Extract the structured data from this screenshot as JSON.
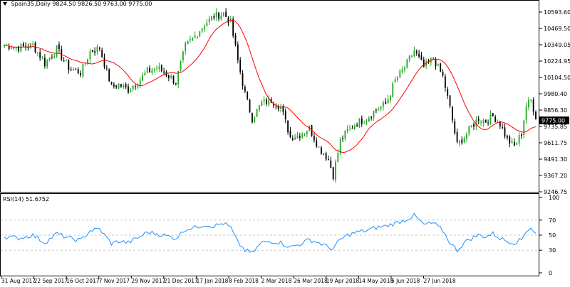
{
  "header": {
    "symbol": "Spain35,Daily",
    "ohlc": "9824.50 9826.50 9763.00 9775.00"
  },
  "rsi_header": {
    "label": "RSI(14)",
    "value": "51.6752"
  },
  "colors": {
    "bull": "#22aa22",
    "bear": "#000000",
    "ma": "#ff0000",
    "rsi": "#1e90ff",
    "grid": "#c8c8c8",
    "frame": "#000000"
  },
  "chart_data": [
    {
      "type": "candlestick",
      "title": "Spain35,Daily",
      "indicator": "Moving average",
      "y_ticks": [
        "10593.60",
        "10469.50",
        "10349.05",
        "10224.95",
        "10104.50",
        "9980.40",
        "9856.30",
        "9735.85",
        "9611.75",
        "9491.30",
        "9367.20",
        "9246.75"
      ],
      "last_price_label": "9775.00",
      "ylim": [
        9225,
        10620
      ],
      "x_ticks": [
        "31 Aug 2017",
        "22 Sep 2017",
        "16 Oct 2017",
        "7 Nov 2017",
        "29 Nov 2017",
        "21 Dec 2017",
        "17 Jan 2018",
        "8 Feb 2018",
        "2 Mar 2018",
        "26 Mar 2018",
        "19 Apr 2018",
        "14 May 2018",
        "5 Jun 2018",
        "27 Jun 2018"
      ],
      "anchor_closes": [
        [
          0,
          10320
        ],
        [
          6,
          10300
        ],
        [
          12,
          10320
        ],
        [
          17,
          10180
        ],
        [
          22,
          10290
        ],
        [
          27,
          10150
        ],
        [
          32,
          10110
        ],
        [
          36,
          10270
        ],
        [
          40,
          10300
        ],
        [
          45,
          10000
        ],
        [
          48,
          10020
        ],
        [
          52,
          9980
        ],
        [
          57,
          10060
        ],
        [
          60,
          10120
        ],
        [
          64,
          10150
        ],
        [
          68,
          10100
        ],
        [
          72,
          10040
        ],
        [
          76,
          10310
        ],
        [
          80,
          10390
        ],
        [
          84,
          10480
        ],
        [
          88,
          10540
        ],
        [
          92,
          10560
        ],
        [
          95,
          10490
        ],
        [
          98,
          10200
        ],
        [
          101,
          9950
        ],
        [
          104,
          9760
        ],
        [
          108,
          9880
        ],
        [
          112,
          9900
        ],
        [
          116,
          9850
        ],
        [
          120,
          9620
        ],
        [
          124,
          9640
        ],
        [
          128,
          9690
        ],
        [
          132,
          9540
        ],
        [
          136,
          9450
        ],
        [
          138,
          9330
        ],
        [
          141,
          9590
        ],
        [
          144,
          9670
        ],
        [
          148,
          9730
        ],
        [
          152,
          9760
        ],
        [
          156,
          9830
        ],
        [
          160,
          9870
        ],
        [
          164,
          10050
        ],
        [
          168,
          10150
        ],
        [
          172,
          10280
        ],
        [
          176,
          10150
        ],
        [
          180,
          10220
        ],
        [
          184,
          10080
        ],
        [
          187,
          9840
        ],
        [
          190,
          9560
        ],
        [
          193,
          9620
        ],
        [
          196,
          9700
        ],
        [
          199,
          9760
        ],
        [
          202,
          9740
        ],
        [
          205,
          9780
        ],
        [
          208,
          9720
        ],
        [
          211,
          9600
        ],
        [
          214,
          9550
        ],
        [
          217,
          9650
        ],
        [
          219,
          9860
        ],
        [
          221,
          9900
        ],
        [
          223,
          9775
        ]
      ]
    },
    {
      "type": "line",
      "title": "RSI(14)",
      "series": [
        {
          "name": "RSI(14)",
          "last_value": 51.6752
        }
      ],
      "y_ticks": [
        100,
        70,
        50,
        30,
        0
      ],
      "levels": [
        70,
        50,
        30
      ],
      "ylim": [
        0,
        100
      ],
      "anchor_values": [
        [
          0,
          48
        ],
        [
          6,
          46
        ],
        [
          12,
          50
        ],
        [
          17,
          40
        ],
        [
          22,
          52
        ],
        [
          27,
          46
        ],
        [
          32,
          43
        ],
        [
          36,
          56
        ],
        [
          40,
          58
        ],
        [
          45,
          39
        ],
        [
          48,
          42
        ],
        [
          52,
          40
        ],
        [
          57,
          48
        ],
        [
          60,
          54
        ],
        [
          64,
          52
        ],
        [
          68,
          49
        ],
        [
          72,
          46
        ],
        [
          76,
          58
        ],
        [
          80,
          60
        ],
        [
          84,
          64
        ],
        [
          88,
          62
        ],
        [
          92,
          66
        ],
        [
          95,
          60
        ],
        [
          98,
          40
        ],
        [
          101,
          30
        ],
        [
          104,
          26
        ],
        [
          108,
          40
        ],
        [
          112,
          42
        ],
        [
          116,
          40
        ],
        [
          120,
          34
        ],
        [
          124,
          38
        ],
        [
          128,
          44
        ],
        [
          132,
          40
        ],
        [
          136,
          34
        ],
        [
          138,
          32
        ],
        [
          141,
          44
        ],
        [
          144,
          50
        ],
        [
          148,
          54
        ],
        [
          152,
          56
        ],
        [
          156,
          60
        ],
        [
          160,
          62
        ],
        [
          164,
          66
        ],
        [
          168,
          70
        ],
        [
          172,
          76
        ],
        [
          176,
          64
        ],
        [
          180,
          66
        ],
        [
          184,
          56
        ],
        [
          187,
          40
        ],
        [
          190,
          30
        ],
        [
          193,
          40
        ],
        [
          196,
          46
        ],
        [
          199,
          50
        ],
        [
          202,
          48
        ],
        [
          205,
          52
        ],
        [
          208,
          46
        ],
        [
          211,
          42
        ],
        [
          214,
          40
        ],
        [
          217,
          44
        ],
        [
          219,
          56
        ],
        [
          221,
          60
        ],
        [
          223,
          51.7
        ]
      ]
    }
  ]
}
